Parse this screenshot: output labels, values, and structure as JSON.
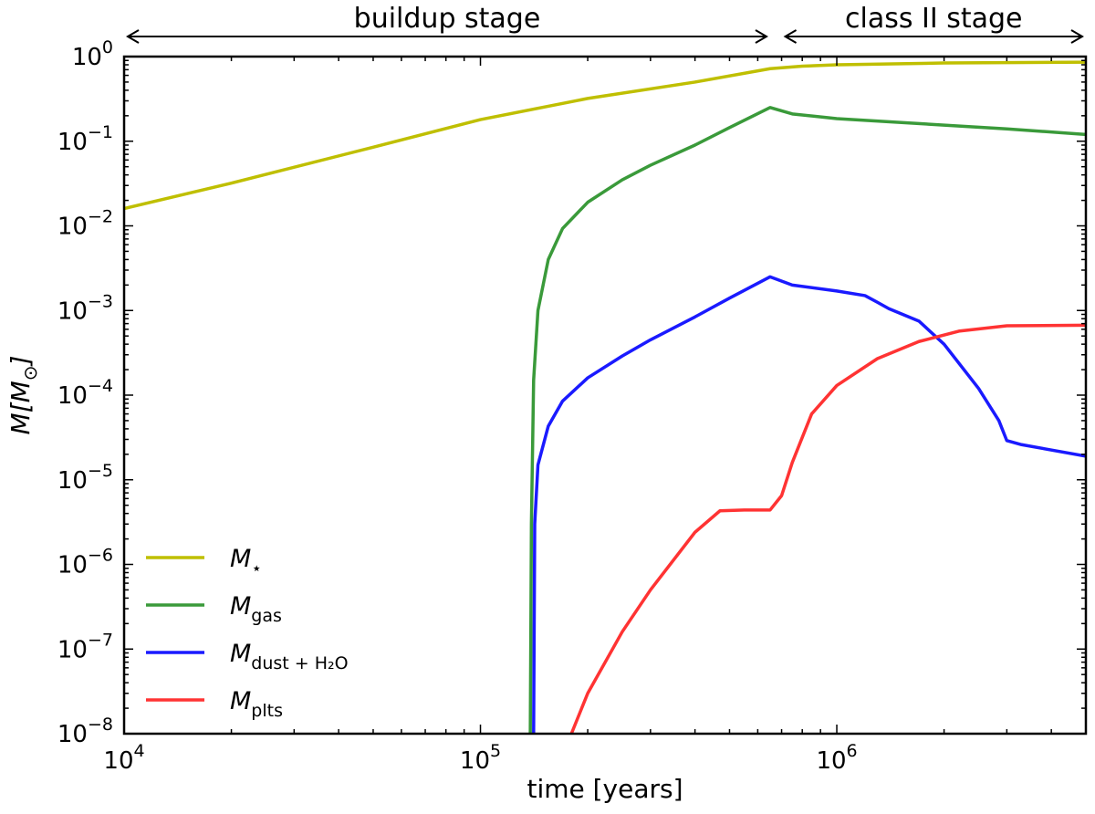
{
  "chart_data": {
    "type": "line",
    "xlabel": "time [years]",
    "ylabel_parts": [
      "M[M",
      "⊙",
      "]"
    ],
    "x_scale": "log",
    "y_scale": "log",
    "xlim": [
      10000,
      5000000
    ],
    "ylim": [
      1e-08,
      1
    ],
    "x_ticks": [
      {
        "value": 10000,
        "base": "10",
        "exp": "4"
      },
      {
        "value": 100000,
        "base": "10",
        "exp": "5"
      },
      {
        "value": 1000000,
        "base": "10",
        "exp": "6"
      }
    ],
    "y_ticks": [
      {
        "value": 1,
        "base": "10",
        "exp": "0"
      },
      {
        "value": 0.1,
        "base": "10",
        "exp": "−1"
      },
      {
        "value": 0.01,
        "base": "10",
        "exp": "−2"
      },
      {
        "value": 0.001,
        "base": "10",
        "exp": "−3"
      },
      {
        "value": 0.0001,
        "base": "10",
        "exp": "−4"
      },
      {
        "value": 1e-05,
        "base": "10",
        "exp": "−5"
      },
      {
        "value": 1e-06,
        "base": "10",
        "exp": "−6"
      },
      {
        "value": 1e-07,
        "base": "10",
        "exp": "−7"
      },
      {
        "value": 1e-08,
        "base": "10",
        "exp": "−8"
      }
    ],
    "grid": false,
    "legend_position": "bottom-left",
    "stages": [
      {
        "label": "buildup stage",
        "from": 10000,
        "to": 650000
      },
      {
        "label": "class II stage",
        "from": 700000,
        "to": 5000000
      }
    ],
    "series": [
      {
        "name_main": "M",
        "name_sub": "⋆",
        "color": "#bfbf00",
        "points": [
          [
            10000,
            0.016
          ],
          [
            20000,
            0.032
          ],
          [
            50000,
            0.085
          ],
          [
            100000,
            0.18
          ],
          [
            200000,
            0.32
          ],
          [
            400000,
            0.5
          ],
          [
            650000,
            0.72
          ],
          [
            800000,
            0.77
          ],
          [
            1000000,
            0.8
          ],
          [
            2000000,
            0.84
          ],
          [
            5000000,
            0.86
          ]
        ]
      },
      {
        "name_main": "M",
        "name_sub": "gas",
        "color": "#3a9a3a",
        "points": [
          [
            138000,
            1e-08
          ],
          [
            139000,
            3e-06
          ],
          [
            141000,
            0.00015
          ],
          [
            145000,
            0.001
          ],
          [
            155000,
            0.004
          ],
          [
            170000,
            0.0093
          ],
          [
            200000,
            0.019
          ],
          [
            250000,
            0.035
          ],
          [
            300000,
            0.052
          ],
          [
            400000,
            0.09
          ],
          [
            500000,
            0.145
          ],
          [
            650000,
            0.25
          ],
          [
            750000,
            0.21
          ],
          [
            1000000,
            0.185
          ],
          [
            2000000,
            0.155
          ],
          [
            3000000,
            0.14
          ],
          [
            5000000,
            0.12
          ]
        ]
      },
      {
        "name_main": "M",
        "name_sub": "dust + H₂O",
        "color": "#1a1aff",
        "points": [
          [
            141000,
            1e-08
          ],
          [
            142000,
            3e-06
          ],
          [
            145000,
            1.5e-05
          ],
          [
            155000,
            4.3e-05
          ],
          [
            170000,
            8.5e-05
          ],
          [
            200000,
            0.00016
          ],
          [
            250000,
            0.00029
          ],
          [
            300000,
            0.00045
          ],
          [
            400000,
            0.00084
          ],
          [
            500000,
            0.0014
          ],
          [
            650000,
            0.0025
          ],
          [
            750000,
            0.002
          ],
          [
            1000000,
            0.0017
          ],
          [
            1200000,
            0.0015
          ],
          [
            1300000,
            0.00125
          ],
          [
            1400000,
            0.00105
          ],
          [
            1700000,
            0.00075
          ],
          [
            2000000,
            0.0004
          ],
          [
            2500000,
            0.00012
          ],
          [
            2850000,
            5e-05
          ],
          [
            3000000,
            2.9e-05
          ],
          [
            3300000,
            2.6e-05
          ],
          [
            5000000,
            1.9e-05
          ]
        ]
      },
      {
        "name_main": "M",
        "name_sub": "plts",
        "color": "#ff3333",
        "points": [
          [
            180000,
            1e-08
          ],
          [
            200000,
            3e-08
          ],
          [
            250000,
            1.6e-07
          ],
          [
            300000,
            5e-07
          ],
          [
            400000,
            2.4e-06
          ],
          [
            470000,
            4.3e-06
          ],
          [
            550000,
            4.4e-06
          ],
          [
            650000,
            4.4e-06
          ],
          [
            700000,
            6.5e-06
          ],
          [
            750000,
            1.6e-05
          ],
          [
            850000,
            6e-05
          ],
          [
            1000000,
            0.00013
          ],
          [
            1300000,
            0.00027
          ],
          [
            1700000,
            0.00043
          ],
          [
            2200000,
            0.00057
          ],
          [
            3000000,
            0.00066
          ],
          [
            5000000,
            0.00067
          ]
        ]
      }
    ]
  }
}
